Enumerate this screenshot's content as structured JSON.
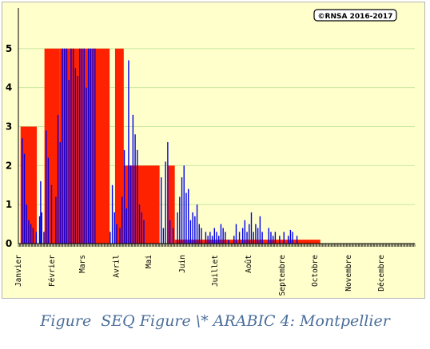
{
  "chart_data": {
    "type": "bar",
    "copyright": "©RNSA 2016-2017",
    "x_axis": {
      "unit": "days",
      "range": [
        0,
        365
      ],
      "tick_labels": [
        "Janvier",
        "Février",
        "Mars",
        "Avril",
        "Mai",
        "Juin",
        "Juillet",
        "Août",
        "Septembre",
        "Octobre",
        "Novembre",
        "Décembre"
      ],
      "tick_days": [
        0,
        31,
        59,
        90,
        120,
        151,
        181,
        212,
        243,
        273,
        304,
        334
      ]
    },
    "y_axis": {
      "range": [
        0,
        6
      ],
      "tick_labels": [
        "0",
        "1",
        "2",
        "3",
        "4",
        "5"
      ],
      "grid": true
    },
    "colors": {
      "red": "#ff2200",
      "blue": "#0000ee",
      "background": "#ffffcc",
      "gridline": "#c8e8a0"
    },
    "series": [
      {
        "color": "red",
        "segments": [
          {
            "from": 2,
            "to": 17,
            "level": 3
          },
          {
            "from": 24,
            "to": 38,
            "level": 5
          },
          {
            "from": 38,
            "to": 70,
            "level": 5
          },
          {
            "from": 70,
            "to": 84,
            "level": 5
          },
          {
            "from": 89,
            "to": 97,
            "level": 5
          },
          {
            "from": 97,
            "to": 130,
            "level": 2
          },
          {
            "from": 138,
            "to": 144,
            "level": 2
          },
          {
            "from": 144,
            "to": 278,
            "level": 0.1
          }
        ]
      },
      {
        "color": "blue",
        "values": [
          [
            3,
            2.7
          ],
          [
            5,
            2.3
          ],
          [
            7,
            1.0
          ],
          [
            9,
            0.6
          ],
          [
            11,
            0.5
          ],
          [
            13,
            0.4
          ],
          [
            16,
            0.3
          ],
          [
            19,
            0.7
          ],
          [
            20,
            1.6
          ],
          [
            21,
            0.8
          ],
          [
            23,
            0.3
          ],
          [
            25,
            2.9
          ],
          [
            27,
            2.2
          ],
          [
            30,
            1.5
          ],
          [
            34,
            1.2
          ],
          [
            36,
            3.3
          ],
          [
            38,
            2.6
          ],
          [
            40,
            5.0
          ],
          [
            42,
            5.0
          ],
          [
            44,
            5.0
          ],
          [
            46,
            4.2
          ],
          [
            48,
            5.0
          ],
          [
            50,
            5.0
          ],
          [
            52,
            4.5
          ],
          [
            54,
            4.3
          ],
          [
            56,
            5.0
          ],
          [
            58,
            5.0
          ],
          [
            60,
            5.0
          ],
          [
            62,
            4.0
          ],
          [
            64,
            5.0
          ],
          [
            66,
            5.0
          ],
          [
            68,
            5.0
          ],
          [
            70,
            5.0
          ],
          [
            84,
            0.3
          ],
          [
            86,
            1.5
          ],
          [
            88,
            0.8
          ],
          [
            90,
            0.5
          ],
          [
            93,
            0.4
          ],
          [
            95,
            1.2
          ],
          [
            97,
            2.4
          ],
          [
            99,
            0.9
          ],
          [
            101,
            4.7
          ],
          [
            103,
            2.0
          ],
          [
            105,
            3.3
          ],
          [
            107,
            2.8
          ],
          [
            109,
            2.4
          ],
          [
            111,
            1.0
          ],
          [
            113,
            0.8
          ],
          [
            115,
            0.6
          ],
          [
            131,
            1.7
          ],
          [
            133,
            0.4
          ],
          [
            135,
            2.1
          ],
          [
            137,
            2.6
          ],
          [
            139,
            0.6
          ],
          [
            142,
            0.4
          ],
          [
            146,
            0.8
          ],
          [
            148,
            1.2
          ],
          [
            150,
            1.7
          ],
          [
            152,
            2.0
          ],
          [
            154,
            1.3
          ],
          [
            156,
            1.4
          ],
          [
            158,
            0.6
          ],
          [
            160,
            0.8
          ],
          [
            162,
            0.7
          ],
          [
            164,
            1.0
          ],
          [
            166,
            0.5
          ],
          [
            168,
            0.4
          ],
          [
            172,
            0.3
          ],
          [
            174,
            0.2
          ],
          [
            176,
            0.3
          ],
          [
            178,
            0.2
          ],
          [
            180,
            0.4
          ],
          [
            182,
            0.3
          ],
          [
            184,
            0.2
          ],
          [
            186,
            0.5
          ],
          [
            188,
            0.4
          ],
          [
            190,
            0.3
          ],
          [
            193,
            0.1
          ],
          [
            198,
            0.2
          ],
          [
            200,
            0.5
          ],
          [
            203,
            0.3
          ],
          [
            206,
            0.4
          ],
          [
            208,
            0.6
          ],
          [
            210,
            0.3
          ],
          [
            212,
            0.5
          ],
          [
            214,
            0.8
          ],
          [
            216,
            0.3
          ],
          [
            218,
            0.5
          ],
          [
            220,
            0.4
          ],
          [
            222,
            0.7
          ],
          [
            224,
            0.3
          ],
          [
            230,
            0.4
          ],
          [
            232,
            0.3
          ],
          [
            234,
            0.2
          ],
          [
            236,
            0.3
          ],
          [
            240,
            0.2
          ],
          [
            244,
            0.3
          ],
          [
            248,
            0.2
          ],
          [
            250,
            0.35
          ],
          [
            252,
            0.3
          ],
          [
            256,
            0.2
          ]
        ]
      }
    ]
  },
  "caption": "Figure  SEQ Figure \\* ARABIC 4: Montpellier"
}
